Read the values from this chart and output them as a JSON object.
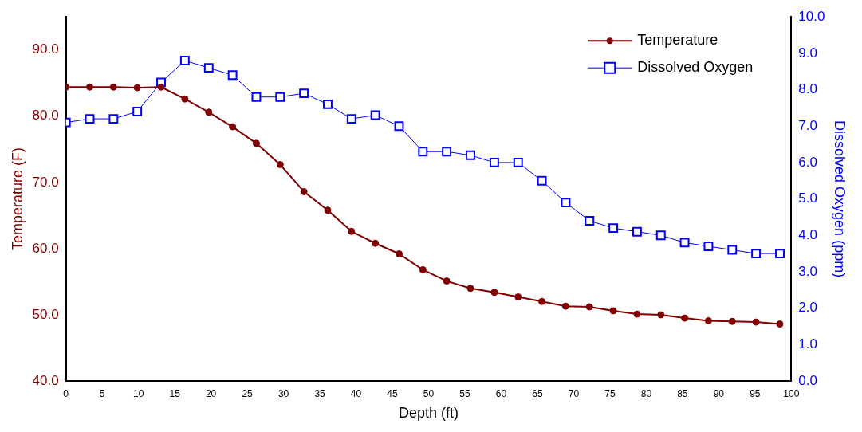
{
  "chart_data": {
    "type": "line",
    "xlabel": "Depth (ft)",
    "ylabel": "Temperature (F)",
    "y2label": "Dissolved Oxygen (ppm)",
    "x": [
      0,
      3.28,
      6.56,
      9.84,
      13.12,
      16.4,
      19.69,
      22.97,
      26.25,
      29.53,
      32.81,
      36.09,
      39.37,
      42.65,
      45.93,
      49.21,
      52.49,
      55.77,
      59.06,
      62.34,
      65.62,
      68.9,
      72.18,
      75.46,
      78.74,
      82.02,
      85.3,
      88.58,
      91.86,
      95.14,
      98.43
    ],
    "series": [
      {
        "name": "Temperature",
        "color": "#800000",
        "marker": "circle",
        "axis": "y",
        "values": [
          84.4,
          84.4,
          84.4,
          84.3,
          84.4,
          82.6,
          80.6,
          78.4,
          75.9,
          72.7,
          68.6,
          65.8,
          62.6,
          60.8,
          59.2,
          56.8,
          55.1,
          54.0,
          53.4,
          52.7,
          52.0,
          51.3,
          51.2,
          50.6,
          50.1,
          50.0,
          49.5,
          49.1,
          49.0,
          48.9,
          48.6
        ]
      },
      {
        "name": "Dissolved Oxygen",
        "color": "#0000ff",
        "marker": "square",
        "axis": "y2",
        "values": [
          7.1,
          7.2,
          7.2,
          7.4,
          8.2,
          8.8,
          8.6,
          8.4,
          7.8,
          7.8,
          7.9,
          7.6,
          7.2,
          7.3,
          7.0,
          6.3,
          6.3,
          6.2,
          6.0,
          6.0,
          5.5,
          4.9,
          4.4,
          4.2,
          4.1,
          4.0,
          3.8,
          3.7,
          3.6,
          3.5,
          3.5
        ]
      }
    ],
    "xlim": [
      0,
      100
    ],
    "xticks": [
      0,
      5,
      10,
      15,
      20,
      25,
      30,
      35,
      40,
      45,
      50,
      55,
      60,
      65,
      70,
      75,
      80,
      85,
      90,
      95,
      100
    ],
    "ylim": [
      40,
      95
    ],
    "yticks": [
      {
        "value": 40,
        "label": "40.0"
      },
      {
        "value": 50,
        "label": "50.0"
      },
      {
        "value": 60,
        "label": "60.0"
      },
      {
        "value": 70,
        "label": "70.0"
      },
      {
        "value": 80,
        "label": "80.0"
      },
      {
        "value": 90,
        "label": "90.0"
      }
    ],
    "y2lim": [
      0,
      10
    ],
    "y2ticks": [
      {
        "value": 0,
        "label": "0.0"
      },
      {
        "value": 1,
        "label": "1.0"
      },
      {
        "value": 2,
        "label": "2.0"
      },
      {
        "value": 3,
        "label": "3.0"
      },
      {
        "value": 4,
        "label": "4.0"
      },
      {
        "value": 5,
        "label": "5.0"
      },
      {
        "value": 6,
        "label": "6.0"
      },
      {
        "value": 7,
        "label": "7.0"
      },
      {
        "value": 8,
        "label": "8.0"
      },
      {
        "value": 9,
        "label": "9.0"
      },
      {
        "value": 10,
        "label": "10.0"
      }
    ],
    "grid": false,
    "legend": "top right",
    "line_style": "solid"
  }
}
